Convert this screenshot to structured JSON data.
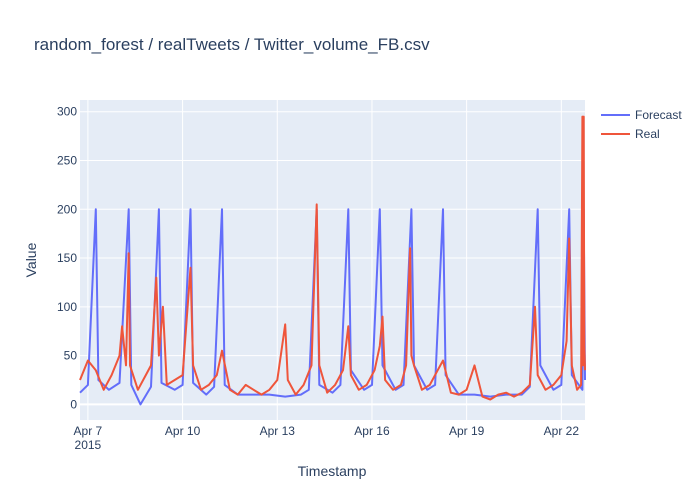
{
  "chart_data": {
    "type": "line",
    "title": "random_forest / realTweets / Twitter_volume_FB.csv",
    "xlabel": "Timestamp",
    "ylabel": "Value",
    "x_range": [
      "2015-04-06T18:00",
      "2015-04-22T18:00"
    ],
    "ylim": [
      -16,
      312
    ],
    "y_ticks": [
      0,
      50,
      100,
      150,
      200,
      250,
      300
    ],
    "x_ticks": [
      {
        "date": "2015-04-07",
        "label": "Apr 7",
        "sublabel": "2015"
      },
      {
        "date": "2015-04-10",
        "label": "Apr 10",
        "sublabel": ""
      },
      {
        "date": "2015-04-13",
        "label": "Apr 13",
        "sublabel": ""
      },
      {
        "date": "2015-04-16",
        "label": "Apr 16",
        "sublabel": ""
      },
      {
        "date": "2015-04-19",
        "label": "Apr 19",
        "sublabel": ""
      },
      {
        "date": "2015-04-22",
        "label": "Apr 22",
        "sublabel": ""
      }
    ],
    "grid": true,
    "legend_position": "top-right",
    "series": [
      {
        "name": "Forecast",
        "color": "#636efa",
        "points": [
          [
            "2015-04-06T18:00",
            12
          ],
          [
            "2015-04-07T00:00",
            20
          ],
          [
            "2015-04-07T06:00",
            200
          ],
          [
            "2015-04-07T08:00",
            25
          ],
          [
            "2015-04-07T16:00",
            15
          ],
          [
            "2015-04-08T00:00",
            22
          ],
          [
            "2015-04-08T07:00",
            200
          ],
          [
            "2015-04-08T09:00",
            20
          ],
          [
            "2015-04-08T16:00",
            0
          ],
          [
            "2015-04-09T00:00",
            18
          ],
          [
            "2015-04-09T06:00",
            200
          ],
          [
            "2015-04-09T08:00",
            22
          ],
          [
            "2015-04-09T18:00",
            15
          ],
          [
            "2015-04-10T00:00",
            20
          ],
          [
            "2015-04-10T06:00",
            200
          ],
          [
            "2015-04-10T08:00",
            22
          ],
          [
            "2015-04-10T18:00",
            10
          ],
          [
            "2015-04-11T00:00",
            18
          ],
          [
            "2015-04-11T06:00",
            200
          ],
          [
            "2015-04-11T08:00",
            20
          ],
          [
            "2015-04-11T18:00",
            10
          ],
          [
            "2015-04-12T06:00",
            10
          ],
          [
            "2015-04-12T18:00",
            10
          ],
          [
            "2015-04-13T06:00",
            8
          ],
          [
            "2015-04-13T18:00",
            10
          ],
          [
            "2015-04-14T00:00",
            15
          ],
          [
            "2015-04-14T06:00",
            200
          ],
          [
            "2015-04-14T08:00",
            20
          ],
          [
            "2015-04-14T18:00",
            12
          ],
          [
            "2015-04-15T00:00",
            20
          ],
          [
            "2015-04-15T06:00",
            200
          ],
          [
            "2015-04-15T08:00",
            35
          ],
          [
            "2015-04-15T18:00",
            15
          ],
          [
            "2015-04-16T00:00",
            20
          ],
          [
            "2015-04-16T06:00",
            200
          ],
          [
            "2015-04-16T08:00",
            40
          ],
          [
            "2015-04-16T18:00",
            15
          ],
          [
            "2015-04-17T00:00",
            20
          ],
          [
            "2015-04-17T06:00",
            200
          ],
          [
            "2015-04-17T08:00",
            40
          ],
          [
            "2015-04-17T18:00",
            15
          ],
          [
            "2015-04-18T00:00",
            20
          ],
          [
            "2015-04-18T06:00",
            200
          ],
          [
            "2015-04-18T08:00",
            30
          ],
          [
            "2015-04-18T18:00",
            10
          ],
          [
            "2015-04-19T06:00",
            10
          ],
          [
            "2015-04-19T18:00",
            8
          ],
          [
            "2015-04-20T06:00",
            10
          ],
          [
            "2015-04-20T18:00",
            10
          ],
          [
            "2015-04-21T00:00",
            18
          ],
          [
            "2015-04-21T06:00",
            200
          ],
          [
            "2015-04-21T08:00",
            40
          ],
          [
            "2015-04-21T18:00",
            15
          ],
          [
            "2015-04-22T00:00",
            20
          ],
          [
            "2015-04-22T06:00",
            200
          ],
          [
            "2015-04-22T08:00",
            30
          ],
          [
            "2015-04-22T16:00",
            15
          ],
          [
            "2015-04-22T17:00",
            200
          ],
          [
            "2015-04-22T18:00",
            25
          ]
        ]
      },
      {
        "name": "Real",
        "color": "#ef553b",
        "points": [
          [
            "2015-04-06T18:00",
            25
          ],
          [
            "2015-04-07T00:00",
            45
          ],
          [
            "2015-04-07T06:00",
            35
          ],
          [
            "2015-04-07T12:00",
            15
          ],
          [
            "2015-04-07T18:00",
            30
          ],
          [
            "2015-04-08T00:00",
            50
          ],
          [
            "2015-04-08T02:00",
            80
          ],
          [
            "2015-04-08T05:00",
            40
          ],
          [
            "2015-04-08T07:00",
            155
          ],
          [
            "2015-04-08T08:00",
            40
          ],
          [
            "2015-04-08T14:00",
            15
          ],
          [
            "2015-04-08T20:00",
            30
          ],
          [
            "2015-04-09T00:00",
            40
          ],
          [
            "2015-04-09T04:00",
            130
          ],
          [
            "2015-04-09T06:00",
            50
          ],
          [
            "2015-04-09T09:00",
            100
          ],
          [
            "2015-04-09T12:00",
            20
          ],
          [
            "2015-04-09T18:00",
            25
          ],
          [
            "2015-04-10T00:00",
            30
          ],
          [
            "2015-04-10T06:00",
            140
          ],
          [
            "2015-04-10T08:00",
            40
          ],
          [
            "2015-04-10T14:00",
            15
          ],
          [
            "2015-04-10T20:00",
            20
          ],
          [
            "2015-04-11T02:00",
            30
          ],
          [
            "2015-04-11T06:00",
            55
          ],
          [
            "2015-04-11T12:00",
            15
          ],
          [
            "2015-04-11T18:00",
            10
          ],
          [
            "2015-04-12T00:00",
            20
          ],
          [
            "2015-04-12T06:00",
            15
          ],
          [
            "2015-04-12T12:00",
            10
          ],
          [
            "2015-04-12T18:00",
            15
          ],
          [
            "2015-04-13T00:00",
            25
          ],
          [
            "2015-04-13T06:00",
            82
          ],
          [
            "2015-04-13T08:00",
            25
          ],
          [
            "2015-04-13T14:00",
            10
          ],
          [
            "2015-04-13T20:00",
            20
          ],
          [
            "2015-04-14T02:00",
            40
          ],
          [
            "2015-04-14T06:00",
            205
          ],
          [
            "2015-04-14T08:00",
            40
          ],
          [
            "2015-04-14T14:00",
            12
          ],
          [
            "2015-04-14T20:00",
            20
          ],
          [
            "2015-04-15T02:00",
            35
          ],
          [
            "2015-04-15T06:00",
            80
          ],
          [
            "2015-04-15T08:00",
            30
          ],
          [
            "2015-04-15T14:00",
            15
          ],
          [
            "2015-04-15T20:00",
            20
          ],
          [
            "2015-04-16T02:00",
            35
          ],
          [
            "2015-04-16T06:00",
            60
          ],
          [
            "2015-04-16T08:00",
            90
          ],
          [
            "2015-04-16T10:00",
            25
          ],
          [
            "2015-04-16T16:00",
            15
          ],
          [
            "2015-04-16T22:00",
            20
          ],
          [
            "2015-04-17T02:00",
            40
          ],
          [
            "2015-04-17T05:00",
            160
          ],
          [
            "2015-04-17T06:00",
            50
          ],
          [
            "2015-04-17T08:00",
            40
          ],
          [
            "2015-04-17T14:00",
            15
          ],
          [
            "2015-04-17T20:00",
            20
          ],
          [
            "2015-04-18T02:00",
            35
          ],
          [
            "2015-04-18T06:00",
            45
          ],
          [
            "2015-04-18T12:00",
            12
          ],
          [
            "2015-04-18T18:00",
            10
          ],
          [
            "2015-04-19T00:00",
            15
          ],
          [
            "2015-04-19T06:00",
            40
          ],
          [
            "2015-04-19T12:00",
            8
          ],
          [
            "2015-04-19T18:00",
            5
          ],
          [
            "2015-04-20T00:00",
            10
          ],
          [
            "2015-04-20T06:00",
            12
          ],
          [
            "2015-04-20T12:00",
            8
          ],
          [
            "2015-04-20T18:00",
            12
          ],
          [
            "2015-04-21T00:00",
            20
          ],
          [
            "2015-04-21T04:00",
            100
          ],
          [
            "2015-04-21T06:00",
            30
          ],
          [
            "2015-04-21T12:00",
            15
          ],
          [
            "2015-04-21T18:00",
            20
          ],
          [
            "2015-04-22T00:00",
            30
          ],
          [
            "2015-04-22T04:00",
            65
          ],
          [
            "2015-04-22T06:00",
            170
          ],
          [
            "2015-04-22T08:00",
            40
          ],
          [
            "2015-04-22T12:00",
            15
          ],
          [
            "2015-04-22T15:00",
            20
          ],
          [
            "2015-04-22T16:00",
            295
          ],
          [
            "2015-04-22T16:30",
            40
          ],
          [
            "2015-04-22T17:00",
            295
          ],
          [
            "2015-04-22T17:30",
            60
          ],
          [
            "2015-04-22T18:00",
            35
          ]
        ]
      }
    ]
  }
}
